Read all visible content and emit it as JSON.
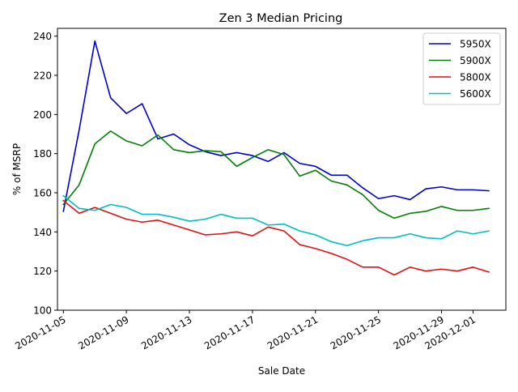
{
  "chart_data": {
    "type": "line",
    "title": "Zen 3 Median Pricing",
    "xlabel": "Sale Date",
    "ylabel": "% of MSRP",
    "ylim": [
      100,
      244
    ],
    "yticks": [
      100,
      120,
      140,
      160,
      180,
      200,
      220,
      240
    ],
    "xticks": [
      "2020-11-05",
      "2020-11-09",
      "2020-11-13",
      "2020-11-17",
      "2020-11-21",
      "2020-11-25",
      "2020-11-29",
      "2020-12-01"
    ],
    "grid": false,
    "legend_position": "top-right",
    "x": [
      "2020-11-05",
      "2020-11-06",
      "2020-11-07",
      "2020-11-08",
      "2020-11-09",
      "2020-11-10",
      "2020-11-11",
      "2020-11-12",
      "2020-11-13",
      "2020-11-14",
      "2020-11-15",
      "2020-11-16",
      "2020-11-17",
      "2020-11-18",
      "2020-11-19",
      "2020-11-20",
      "2020-11-21",
      "2020-11-22",
      "2020-11-23",
      "2020-11-24",
      "2020-11-25",
      "2020-11-26",
      "2020-11-27",
      "2020-11-28",
      "2020-11-29",
      "2020-11-30",
      "2020-12-01",
      "2020-12-02"
    ],
    "series": [
      {
        "name": "5950X",
        "color": "#0000cc",
        "values": [
          150.5,
          192,
          237.5,
          208.5,
          200.5,
          205.5,
          187.5,
          190,
          184.5,
          181,
          179,
          180.5,
          179,
          176,
          180.5,
          175,
          173.5,
          169,
          169,
          162.5,
          157,
          158.5,
          156.5,
          162,
          163,
          161.5,
          161.5,
          161
        ]
      },
      {
        "name": "5900X",
        "color": "#008000",
        "values": [
          154,
          164,
          185,
          191.5,
          186.5,
          184,
          189.5,
          182,
          180.5,
          181.5,
          181,
          173.5,
          178,
          182,
          179.5,
          168.5,
          171.5,
          166,
          164,
          159,
          151,
          147,
          149.5,
          150.5,
          153,
          151,
          151,
          152
        ]
      },
      {
        "name": "5800X",
        "color": "#e01010",
        "values": [
          156,
          149.5,
          152.5,
          149.5,
          146.5,
          145,
          146,
          143.5,
          141,
          138.5,
          139,
          140,
          138,
          142.5,
          140.5,
          133.5,
          131.5,
          129,
          126,
          122,
          122,
          118,
          122,
          120,
          121,
          120,
          122,
          119.5
        ]
      },
      {
        "name": "5600X",
        "color": "#00bfbf",
        "values": [
          158.5,
          152,
          151,
          154,
          152.5,
          149,
          149,
          147.5,
          145.5,
          146.5,
          149,
          147,
          147,
          143.5,
          144,
          140.5,
          138.5,
          135,
          133,
          135.5,
          137,
          137,
          139,
          137,
          136.5,
          140.5,
          139,
          140.5
        ]
      }
    ]
  }
}
